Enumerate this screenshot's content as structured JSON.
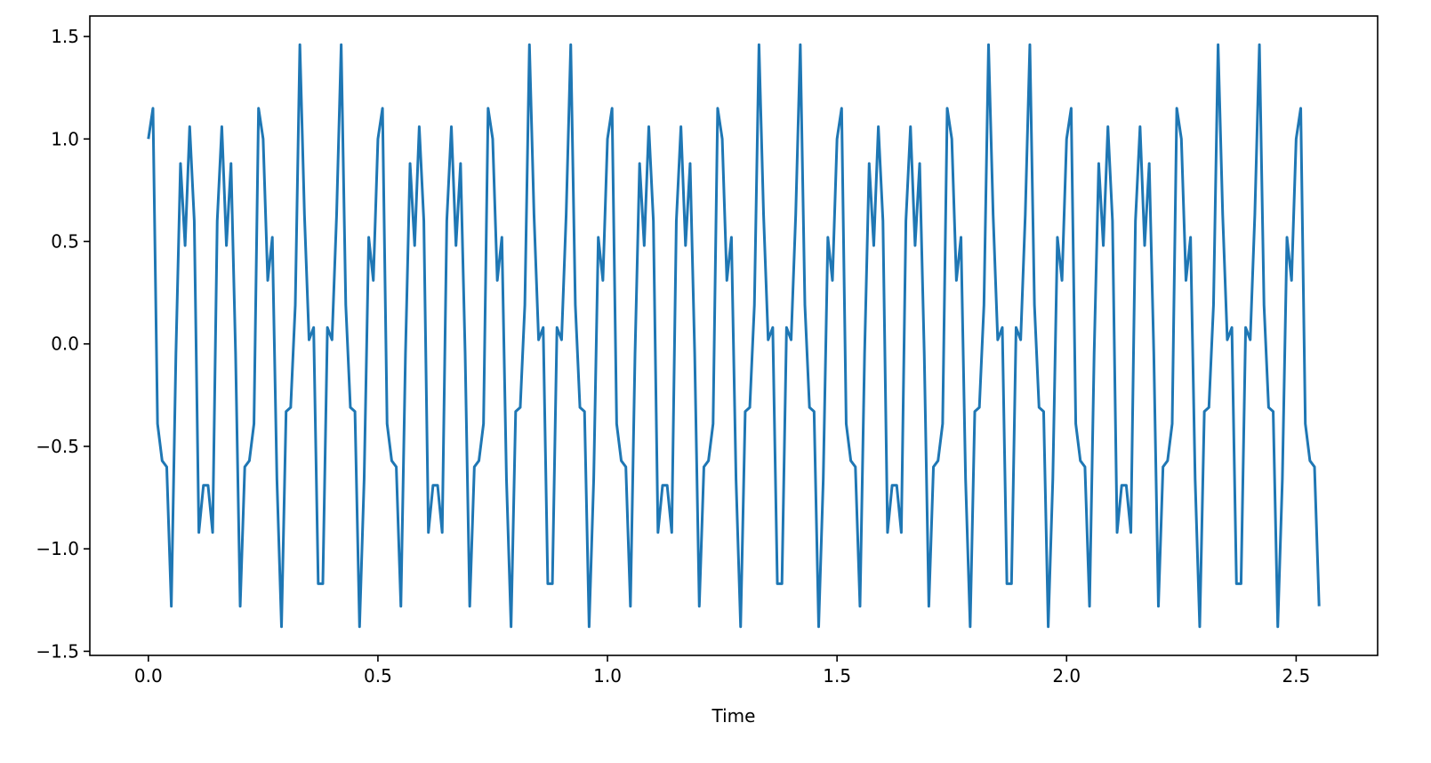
{
  "chart_data": {
    "type": "line",
    "title": "",
    "xlabel": "Time",
    "ylabel": "",
    "xlim": [
      -0.1275,
      2.6775
    ],
    "ylim": [
      -1.52,
      1.6
    ],
    "xticks": [
      0.0,
      0.5,
      1.0,
      1.5,
      2.0,
      2.5
    ],
    "xtick_labels": [
      "0.0",
      "0.5",
      "1.0",
      "1.5",
      "2.0",
      "2.5"
    ],
    "yticks": [
      -1.5,
      -1.0,
      -0.5,
      0.0,
      0.5,
      1.0,
      1.5
    ],
    "ytick_labels": [
      "−1.5",
      "−1.0",
      "−0.5",
      "0.0",
      "0.5",
      "1.0",
      "1.5"
    ],
    "grid": false,
    "legend": "none",
    "line_color": "#1f77b4",
    "series": [
      {
        "x": [
          0.0,
          0.01,
          0.02,
          0.03,
          0.04,
          0.05,
          0.06,
          0.07,
          0.08,
          0.09,
          0.1,
          0.11,
          0.12,
          0.13,
          0.14,
          0.15,
          0.16,
          0.17,
          0.18,
          0.19,
          0.2,
          0.21,
          0.22,
          0.23,
          0.24,
          0.25,
          0.26,
          0.27,
          0.28,
          0.29,
          0.3,
          0.31,
          0.32,
          0.33,
          0.34,
          0.35,
          0.36,
          0.37,
          0.38,
          0.39,
          0.4,
          0.41,
          0.42,
          0.43,
          0.44,
          0.45,
          0.46,
          0.47,
          0.48,
          0.49,
          0.5,
          0.51,
          0.52,
          0.53,
          0.54,
          0.55,
          0.56,
          0.57,
          0.58,
          0.59,
          0.6,
          0.61,
          0.62,
          0.63,
          0.64,
          0.65,
          0.66,
          0.67,
          0.68,
          0.69,
          0.7,
          0.71,
          0.72,
          0.73,
          0.74,
          0.75,
          0.76,
          0.77,
          0.78,
          0.79,
          0.8,
          0.81,
          0.82,
          0.83,
          0.84,
          0.85,
          0.86,
          0.87,
          0.88,
          0.89,
          0.9,
          0.91,
          0.92,
          0.93,
          0.94,
          0.95,
          0.96,
          0.97,
          0.98,
          0.99,
          1.0,
          1.01,
          1.02,
          1.03,
          1.04,
          1.05,
          1.06,
          1.07,
          1.08,
          1.09,
          1.1,
          1.11,
          1.12,
          1.13,
          1.14,
          1.15,
          1.16,
          1.17,
          1.18,
          1.19,
          1.2,
          1.21,
          1.22,
          1.23,
          1.24,
          1.25,
          1.26,
          1.27,
          1.28,
          1.29,
          1.3,
          1.31,
          1.32,
          1.33,
          1.34,
          1.35,
          1.36,
          1.37,
          1.38,
          1.39,
          1.4,
          1.41,
          1.42,
          1.43,
          1.44,
          1.45,
          1.46,
          1.47,
          1.48,
          1.49,
          1.5,
          1.51,
          1.52,
          1.53,
          1.54,
          1.55,
          1.56,
          1.57,
          1.58,
          1.59,
          1.6,
          1.61,
          1.62,
          1.63,
          1.64,
          1.65,
          1.66,
          1.67,
          1.68,
          1.69,
          1.7,
          1.71,
          1.72,
          1.73,
          1.74,
          1.75,
          1.76,
          1.77,
          1.78,
          1.79,
          1.8,
          1.81,
          1.82,
          1.83,
          1.84,
          1.85,
          1.86,
          1.87,
          1.88,
          1.89,
          1.9,
          1.91,
          1.92,
          1.93,
          1.94,
          1.95,
          1.96,
          1.97,
          1.98,
          1.99,
          2.0,
          2.01,
          2.02,
          2.03,
          2.04,
          2.05,
          2.06,
          2.07,
          2.08,
          2.09,
          2.1,
          2.11,
          2.12,
          2.13,
          2.14,
          2.15,
          2.16,
          2.17,
          2.18,
          2.19,
          2.2,
          2.21,
          2.22,
          2.23,
          2.24,
          2.25,
          2.26,
          2.27,
          2.28,
          2.29,
          2.3,
          2.31,
          2.32,
          2.33,
          2.34,
          2.35,
          2.36,
          2.37,
          2.38,
          2.39,
          2.4,
          2.41,
          2.42,
          2.43,
          2.44,
          2.45,
          2.46,
          2.47,
          2.48,
          2.49,
          2.5,
          2.51,
          2.52,
          2.53,
          2.54,
          2.55
        ],
        "y": [
          1.0,
          1.15,
          -0.39,
          -0.57,
          -0.6,
          -1.28,
          -0.05,
          0.88,
          0.48,
          1.06,
          0.6,
          -0.92,
          -0.69,
          -0.69,
          -0.92,
          0.6,
          1.06,
          0.48,
          0.88,
          -0.05,
          -1.28,
          -0.6,
          -0.57,
          -0.39,
          1.15,
          1.0,
          0.31,
          0.52,
          -0.66,
          -1.38,
          -0.33,
          -0.31,
          0.19,
          1.46,
          0.63,
          0.02,
          0.08,
          -1.17,
          -1.17,
          0.08,
          0.02,
          0.63,
          1.46,
          0.19,
          -0.31,
          -0.33,
          -1.38,
          -0.66,
          0.52,
          0.31,
          1.0,
          1.15,
          -0.39,
          -0.57,
          -0.6,
          -1.28,
          -0.05,
          0.88,
          0.48,
          1.06,
          0.6,
          -0.92,
          -0.69,
          -0.69,
          -0.92,
          0.6,
          1.06,
          0.48,
          0.88,
          -0.05,
          -1.28,
          -0.6,
          -0.57,
          -0.39,
          1.15,
          1.0,
          0.31,
          0.52,
          -0.66,
          -1.38,
          -0.33,
          -0.31,
          0.19,
          1.46,
          0.63,
          0.02,
          0.08,
          -1.17,
          -1.17,
          0.08,
          0.02,
          0.63,
          1.46,
          0.19,
          -0.31,
          -0.33,
          -1.38,
          -0.66,
          0.52,
          0.31,
          1.0,
          1.15,
          -0.39,
          -0.57,
          -0.6,
          -1.28,
          -0.05,
          0.88,
          0.48,
          1.06,
          0.6,
          -0.92,
          -0.69,
          -0.69,
          -0.92,
          0.6,
          1.06,
          0.48,
          0.88,
          -0.05,
          -1.28,
          -0.6,
          -0.57,
          -0.39,
          1.15,
          1.0,
          0.31,
          0.52,
          -0.66,
          -1.38,
          -0.33,
          -0.31,
          0.19,
          1.46,
          0.63,
          0.02,
          0.08,
          -1.17,
          -1.17,
          0.08,
          0.02,
          0.63,
          1.46,
          0.19,
          -0.31,
          -0.33,
          -1.38,
          -0.66,
          0.52,
          0.31,
          1.0,
          1.15,
          -0.39,
          -0.57,
          -0.6,
          -1.28,
          -0.05,
          0.88,
          0.48,
          1.06,
          0.6,
          -0.92,
          -0.69,
          -0.69,
          -0.92,
          0.6,
          1.06,
          0.48,
          0.88,
          -0.05,
          -1.28,
          -0.6,
          -0.57,
          -0.39,
          1.15,
          1.0,
          0.31,
          0.52,
          -0.66,
          -1.38,
          -0.33,
          -0.31,
          0.19,
          1.46,
          0.63,
          0.02,
          0.08,
          -1.17,
          -1.17,
          0.08,
          0.02,
          0.63,
          1.46,
          0.19,
          -0.31,
          -0.33,
          -1.38,
          -0.66,
          0.52,
          0.31,
          1.0,
          1.15,
          -0.39,
          -0.57,
          -0.6,
          -1.28,
          -0.05,
          0.88,
          0.48,
          1.06,
          0.6,
          -0.92,
          -0.69,
          -0.69,
          -0.92,
          0.6,
          1.06,
          0.48,
          0.88,
          -0.05,
          -1.28,
          -0.6,
          -0.57,
          -0.39,
          1.15,
          1.0,
          0.31,
          0.52,
          -0.66,
          -1.38,
          -0.33,
          -0.31,
          0.19,
          1.46,
          0.63,
          0.02,
          0.08,
          -1.17,
          -1.17,
          0.08,
          0.02,
          0.63,
          1.46,
          0.19,
          -0.31,
          -0.33,
          -1.38,
          -0.66,
          0.52,
          0.31,
          1.0,
          1.15,
          -0.39,
          -0.57,
          -0.6,
          -1.28
        ]
      }
    ]
  }
}
